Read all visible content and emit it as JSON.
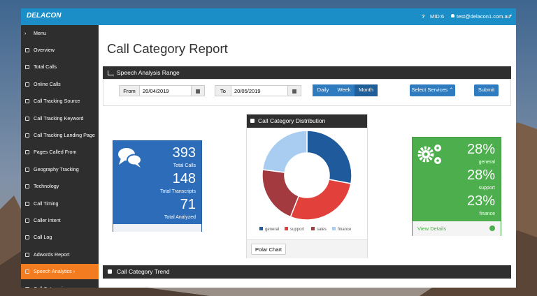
{
  "app": {
    "logo": "DELACON",
    "help": "?",
    "mid": "MID:6",
    "user": "test@delacon1.com.au"
  },
  "sidebar": {
    "menu": "Menu",
    "items": [
      "Overview",
      "Total Calls",
      "Online Calls",
      "Call Tracking Source",
      "Call Tracking Keyword",
      "Call Tracking Landing Page",
      "Pages Called From",
      "Geography Tracking",
      "Technology",
      "Call Timing",
      "Caller Intent",
      "Call Log",
      "Adwords Report",
      "Speech Analytics",
      "Call Categorizer"
    ]
  },
  "page_title": "Call Category Report",
  "range": {
    "title": "Speech Analysis Range",
    "from_label": "From",
    "from": "20/04/2019",
    "to_label": "To",
    "to": "20/05/2019",
    "periods": [
      "Daily",
      "Week",
      "Month"
    ],
    "services": "Select Services",
    "submit": "Submit"
  },
  "totals": [
    {
      "value": 393,
      "label": "Total Calls"
    },
    {
      "value": 148,
      "label": "Total Transcripts"
    },
    {
      "value": 71,
      "label": "Total Analyzed"
    }
  ],
  "chart_data": {
    "type": "pie",
    "donut": true,
    "title": "Call Category Distribution",
    "categories": [
      "general",
      "support",
      "sales",
      "finance"
    ],
    "values": [
      28,
      28,
      21,
      23
    ],
    "colors": [
      "#1f5b9c",
      "#e2413b",
      "#a23a40",
      "#a9cdf1"
    ]
  },
  "chart_button": "Polar Chart",
  "category_stats": [
    {
      "value": "28%",
      "label": "general"
    },
    {
      "value": "28%",
      "label": "support"
    },
    {
      "value": "23%",
      "label": "finance"
    }
  ],
  "details": "View Details",
  "trend_title": "Call Category Trend"
}
